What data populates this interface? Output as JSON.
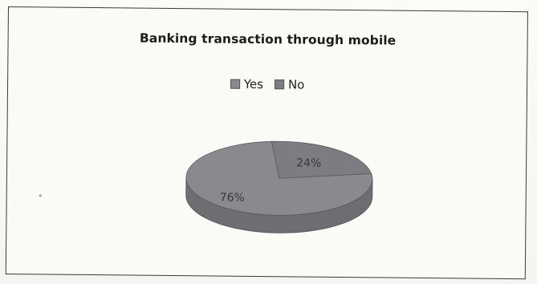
{
  "chart_data": {
    "type": "pie",
    "title": "Banking transaction through mobile",
    "legend_position": "top",
    "categories": [
      "Yes",
      "No"
    ],
    "values": [
      76,
      24
    ],
    "value_labels": [
      "76%",
      "24%"
    ],
    "colors": {
      "Yes": "#8a8a8e",
      "No": "#7c7c82",
      "side": "#6e6e72",
      "outline": "#5a5a5e"
    },
    "three_d": true
  }
}
